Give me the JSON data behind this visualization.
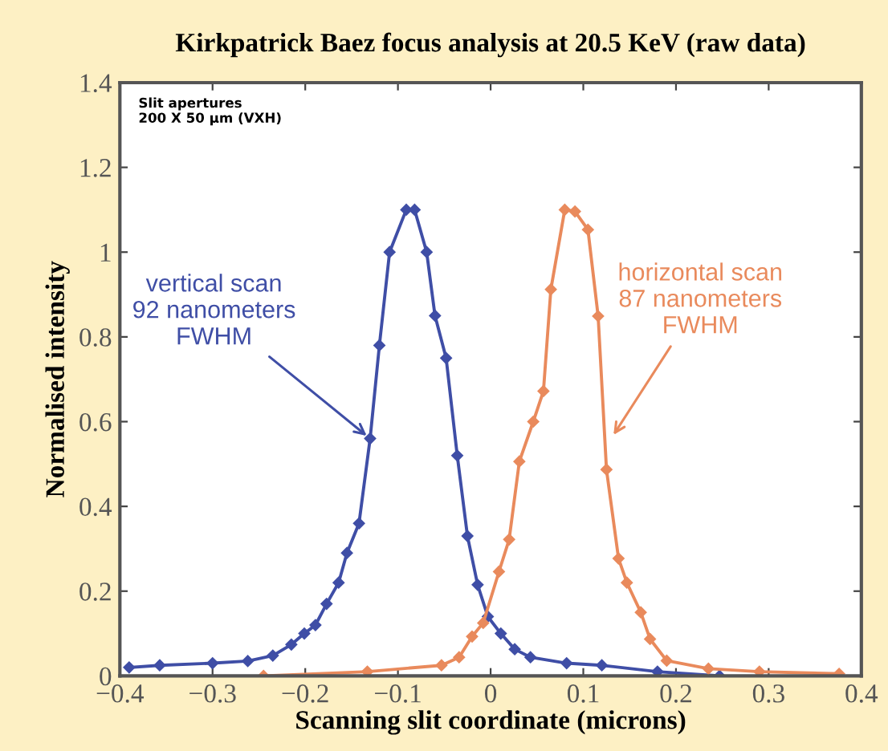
{
  "chart_data": {
    "type": "line",
    "title": "Kirkpatrick Baez focus analysis at 20.5 KeV (raw data)",
    "xlabel": "Scanning slit coordinate (microns)",
    "ylabel": "Normalised intensity",
    "xlim": [
      -0.4,
      0.4
    ],
    "xticks": [
      {
        "value": -0.4,
        "label": "−0.4"
      },
      {
        "value": -0.3,
        "label": "−0.3"
      },
      {
        "value": -0.2,
        "label": "−0.2"
      },
      {
        "value": -0.1,
        "label": "−0.1"
      },
      0,
      0.1,
      0.2,
      0.3,
      0.4
    ],
    "ylim": [
      0,
      1.4
    ],
    "yticks": [
      0,
      0.2,
      0.4,
      0.6,
      0.8,
      1,
      1.2,
      1.4
    ],
    "grid": false,
    "marker": "diamond",
    "line_style": "solid",
    "series": [
      {
        "color": "#3f4ea6",
        "x": [
          -0.39,
          -0.357,
          -0.3,
          -0.262,
          -0.235,
          -0.215,
          -0.201,
          -0.189,
          -0.177,
          -0.164,
          -0.155,
          -0.142,
          -0.13,
          -0.12,
          -0.109,
          -0.091,
          -0.082,
          -0.069,
          -0.06,
          -0.048,
          -0.036,
          -0.025,
          -0.014,
          -0.003,
          0.011,
          0.026,
          0.043,
          0.082,
          0.12,
          0.18,
          0.247
        ],
        "values": [
          0.02,
          0.025,
          0.03,
          0.035,
          0.048,
          0.074,
          0.1,
          0.12,
          0.17,
          0.22,
          0.29,
          0.36,
          0.56,
          0.78,
          1.0,
          1.1,
          1.1,
          1.0,
          0.85,
          0.75,
          0.52,
          0.33,
          0.215,
          0.14,
          0.1,
          0.063,
          0.044,
          0.03,
          0.025,
          0.01,
          0.0
        ]
      },
      {
        "color": "#e98a5c",
        "x": [
          -0.245,
          -0.133,
          -0.053,
          -0.034,
          -0.02,
          -0.008,
          0.009,
          0.02,
          0.031,
          0.046,
          0.057,
          0.065,
          0.08,
          0.091,
          0.105,
          0.116,
          0.125,
          0.138,
          0.147,
          0.162,
          0.172,
          0.19,
          0.235,
          0.29,
          0.376
        ],
        "values": [
          0.0,
          0.01,
          0.025,
          0.044,
          0.093,
          0.125,
          0.246,
          0.322,
          0.506,
          0.6,
          0.672,
          0.912,
          1.1,
          1.096,
          1.053,
          0.849,
          0.487,
          0.277,
          0.22,
          0.15,
          0.087,
          0.036,
          0.017,
          0.01,
          0.005
        ]
      }
    ],
    "annotations": [
      "Slit apertures\n200 X 50 μm (VXH)",
      {
        "text": "vertical scan\n92 nanometers\nFWHM",
        "x": -0.13,
        "y": 0.56
      },
      {
        "text": "horizontal scan\n87 nanometers\nFWHM",
        "x": 0.13,
        "y": 0.56
      }
    ]
  }
}
